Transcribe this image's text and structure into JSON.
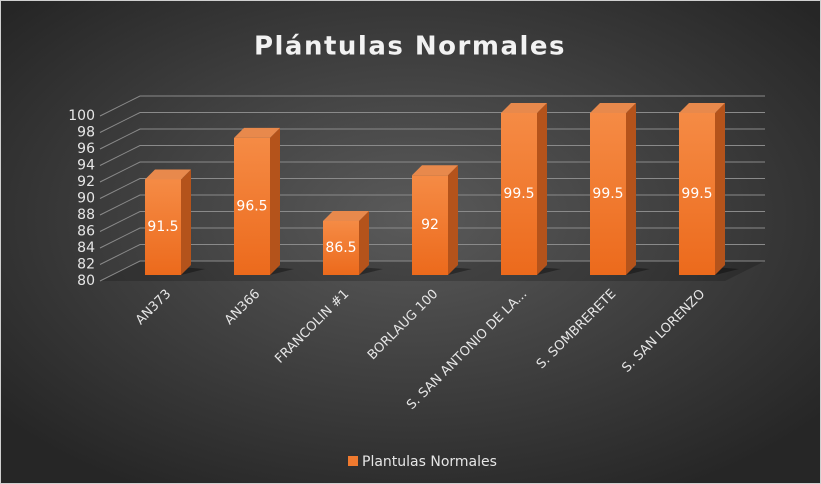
{
  "chart_data": {
    "type": "bar3d",
    "title": "Plántulas Normales",
    "categories": [
      "AN373",
      "AN366",
      "FRANCOLIN #1",
      "BORLAUG 100",
      "S. SAN ANTONIO DE LA...",
      "S. SOMBRERETE",
      "S. SAN LORENZO"
    ],
    "series": [
      {
        "name": "Plantulas Normales",
        "color": "#f07a2f",
        "values": [
          91.5,
          96.5,
          86.5,
          92,
          99.5,
          99.5,
          99.5
        ]
      }
    ],
    "ylim": [
      80,
      100
    ],
    "yticks": [
      80,
      82,
      84,
      86,
      88,
      90,
      92,
      94,
      96,
      98,
      100
    ],
    "grid": true,
    "legend": "bottom",
    "data_labels": true
  }
}
